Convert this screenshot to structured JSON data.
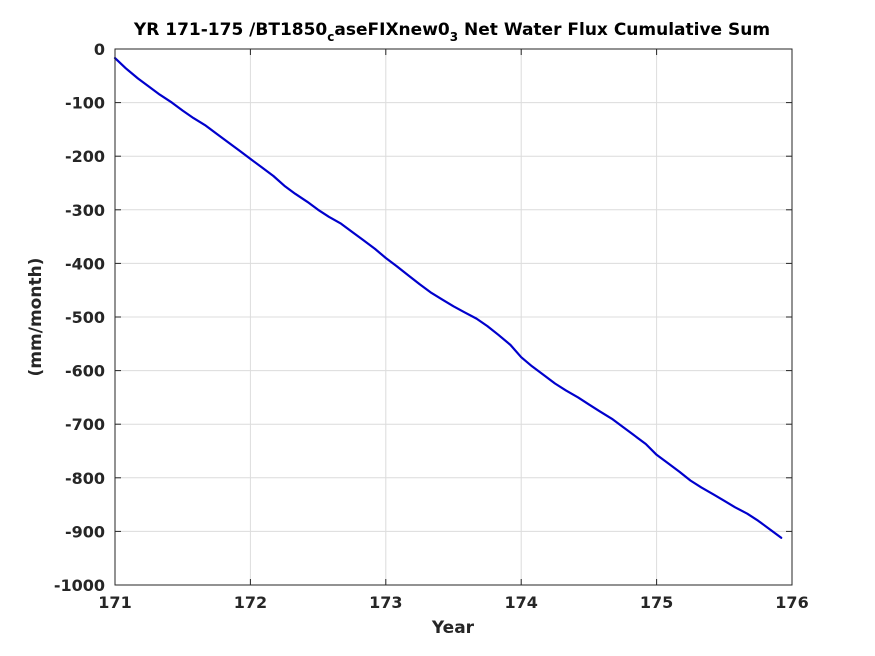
{
  "chart_data": {
    "type": "line",
    "title_parts": {
      "pre": "YR 171-175 /BT1850",
      "sub1": "c",
      "mid": "aseFIXnew0",
      "sub2": "3",
      "post": " Net Water Flux Cumulative Sum"
    },
    "xlabel": "Year",
    "ylabel": "(mm/month)",
    "xlim": [
      171,
      176
    ],
    "ylim": [
      -1000,
      0
    ],
    "xticks": [
      171,
      172,
      173,
      174,
      175,
      176
    ],
    "xtick_labels": [
      "171",
      "172",
      "173",
      "174",
      "175",
      "176"
    ],
    "yticks": [
      0,
      -100,
      -200,
      -300,
      -400,
      -500,
      -600,
      -700,
      -800,
      -900,
      -1000
    ],
    "ytick_labels": [
      "0",
      "-100",
      "-200",
      "-300",
      "-400",
      "-500",
      "-600",
      "-700",
      "-800",
      "-900",
      "-1000"
    ],
    "grid": true,
    "series": [
      {
        "color": "#0000cc",
        "x": [
          171.0,
          171.08,
          171.17,
          171.25,
          171.33,
          171.42,
          171.5,
          171.58,
          171.67,
          171.75,
          171.83,
          171.92,
          172.0,
          172.08,
          172.17,
          172.25,
          172.33,
          172.42,
          172.5,
          172.58,
          172.67,
          172.75,
          172.83,
          172.92,
          173.0,
          173.08,
          173.17,
          173.25,
          173.33,
          173.42,
          173.5,
          173.58,
          173.67,
          173.75,
          173.83,
          173.92,
          174.0,
          174.08,
          174.17,
          174.25,
          174.33,
          174.42,
          174.5,
          174.58,
          174.67,
          174.75,
          174.83,
          174.92,
          175.0,
          175.08,
          175.17,
          175.25,
          175.33,
          175.42,
          175.5,
          175.58,
          175.67,
          175.75,
          175.83,
          175.92
        ],
        "y": [
          -17,
          -36,
          -55,
          -70,
          -85,
          -100,
          -115,
          -129,
          -143,
          -158,
          -173,
          -190,
          -205,
          -220,
          -237,
          -255,
          -270,
          -285,
          -300,
          -313,
          -326,
          -341,
          -356,
          -373,
          -390,
          -405,
          -423,
          -439,
          -454,
          -468,
          -480,
          -491,
          -503,
          -517,
          -533,
          -552,
          -575,
          -592,
          -609,
          -624,
          -637,
          -650,
          -663,
          -676,
          -690,
          -705,
          -720,
          -737,
          -757,
          -772,
          -789,
          -805,
          -818,
          -831,
          -843,
          -855,
          -867,
          -880,
          -895,
          -912
        ]
      }
    ]
  }
}
